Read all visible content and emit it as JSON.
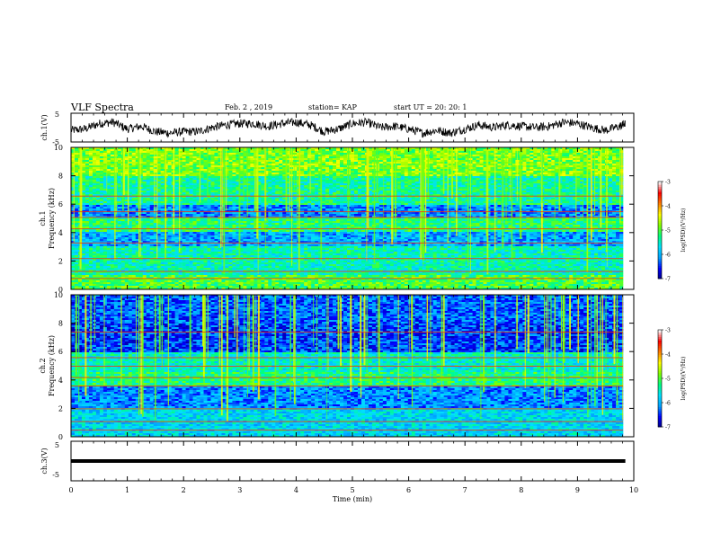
{
  "header": {
    "title": "VLF Spectra",
    "date": "Feb. 2 , 2019",
    "station": "station= KAP",
    "start": "start  UT =   20: 20: 1"
  },
  "chart_data": [
    {
      "type": "line",
      "ylabel": "ch.1(V)",
      "ylim": [
        -5,
        5
      ],
      "yticks": [
        "-5",
        "5"
      ],
      "xlim": [
        0,
        10
      ],
      "x": [
        0,
        0.25,
        0.5,
        0.75,
        1,
        1.25,
        1.5,
        1.75,
        2,
        2.25,
        2.5,
        2.75,
        3,
        3.25,
        3.5,
        3.75,
        4,
        4.25,
        4.5,
        4.75,
        5,
        5.25,
        5.5,
        5.75,
        6,
        6.25,
        6.5,
        6.75,
        7,
        7.25,
        7.5,
        7.75,
        8,
        8.25,
        8.5,
        8.75,
        9,
        9.25,
        9.5,
        9.75,
        9.85
      ],
      "values": [
        -1,
        -0.5,
        1.5,
        2,
        -0.5,
        0.5,
        -1.5,
        -2,
        -1.5,
        -1.5,
        0,
        1,
        1.5,
        1.5,
        0.5,
        1.5,
        2,
        1,
        -1.5,
        -0.5,
        1.5,
        2,
        0,
        0.5,
        -0.5,
        -2,
        -1,
        -2,
        -0.5,
        1,
        0,
        1,
        0.5,
        0,
        0.5,
        2,
        1.5,
        0,
        -1,
        0.5,
        1.5
      ]
    },
    {
      "type": "heatmap",
      "ylabel": "ch.1 Frequency (kHz)",
      "yticks": [
        "0",
        "2",
        "4",
        "6",
        "8",
        "10"
      ],
      "ylim": [
        0,
        10
      ],
      "xlim": [
        0,
        10
      ],
      "colorbar": {
        "label": "log(PSD)(V²/Hz)",
        "ticks": [
          "-3",
          "-4",
          "-5",
          "-6",
          "-7"
        ],
        "range": [
          -7,
          -3
        ]
      }
    },
    {
      "type": "heatmap",
      "ylabel": "ch.2 Frequency (kHz)",
      "yticks": [
        "0",
        "2",
        "4",
        "6",
        "8",
        "10"
      ],
      "ylim": [
        0,
        10
      ],
      "xlim": [
        0,
        10
      ],
      "colorbar": {
        "label": "log(PSD)(V²/Hz)",
        "ticks": [
          "-3",
          "-4",
          "-5",
          "-6",
          "-7"
        ],
        "range": [
          -7,
          -3
        ]
      }
    },
    {
      "type": "line",
      "ylabel": "ch.3(V)",
      "ylim": [
        -5,
        5
      ],
      "yticks": [
        "-5",
        "5"
      ],
      "xlim": [
        0,
        10
      ],
      "x": [
        0,
        9.85
      ],
      "values": [
        0,
        0
      ]
    }
  ],
  "xaxis": {
    "label": "Time  (min)",
    "ticks": [
      "0",
      "1",
      "2",
      "3",
      "4",
      "5",
      "6",
      "7",
      "8",
      "9",
      "10"
    ]
  },
  "colors": {
    "axis": "#000000",
    "trace": "#000000",
    "colormap": [
      "#000080",
      "#0000ff",
      "#00a0ff",
      "#00e0ff",
      "#00ff80",
      "#80ff00",
      "#ffff00",
      "#ff8000",
      "#ff0000",
      "#ffffff"
    ]
  }
}
